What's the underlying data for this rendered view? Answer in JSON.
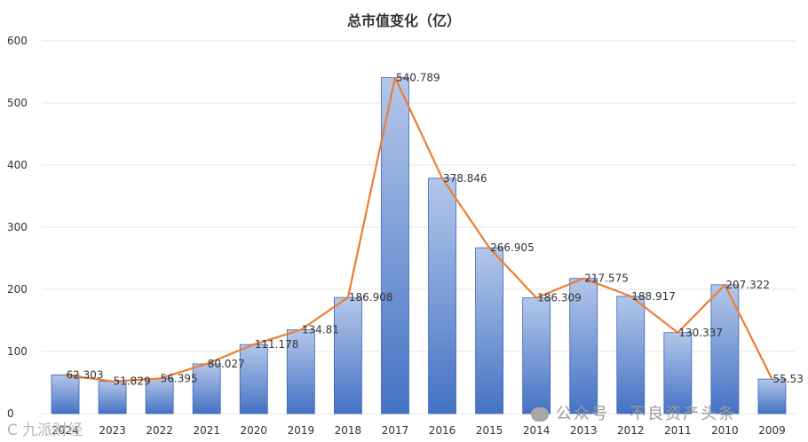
{
  "chart_data": {
    "type": "bar",
    "title": "总市值变化（亿）",
    "categories": [
      "2024",
      "2023",
      "2022",
      "2021",
      "2020",
      "2019",
      "2018",
      "2017",
      "2016",
      "2015",
      "2014",
      "2013",
      "2012",
      "2011",
      "2010",
      "2009"
    ],
    "series": [
      {
        "values": [
          62.303,
          51.829,
          56.395,
          80.027,
          111.178,
          134.81,
          186.908,
          540.789,
          378.846,
          266.905,
          186.309,
          217.575,
          188.917,
          130.337,
          207.322,
          55.53
        ]
      }
    ],
    "data_labels": [
      "62.303",
      "51.829",
      "56.395",
      "80.027",
      "111.178",
      "134.81",
      "186.908",
      "540.789",
      "378.846",
      "266.905",
      "186.309",
      "217.575",
      "188.917",
      "130.337",
      "207.322",
      "55.53"
    ],
    "overlay_line": true,
    "ylim": [
      0,
      600
    ],
    "yticks": [
      "0",
      "100",
      "200",
      "300",
      "400",
      "500",
      "600"
    ],
    "xlabel": "",
    "ylabel": "",
    "grid": true,
    "legend": "none",
    "colors": {
      "bar_top": "#b4c7ea",
      "bar_bottom": "#4472c4",
      "bar_border": "#3a65b5",
      "line": "#ed7d31",
      "grid": "#e6e6e6"
    }
  },
  "watermark": {
    "right_text": "公众号 · 不良资产头条",
    "right_icon": "wechat-icon",
    "left_text": "C 九派财经"
  }
}
